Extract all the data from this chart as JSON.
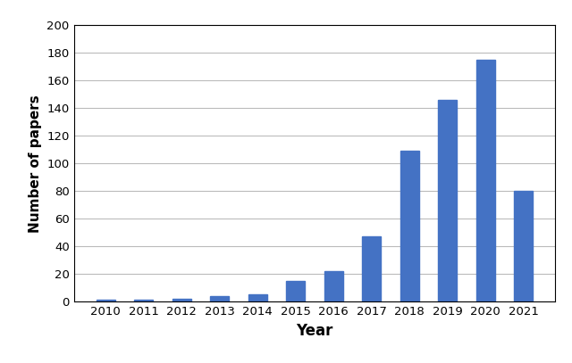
{
  "years": [
    2010,
    2011,
    2012,
    2013,
    2014,
    2015,
    2016,
    2017,
    2018,
    2019,
    2020,
    2021
  ],
  "values": [
    1,
    1,
    2,
    4,
    5,
    15,
    22,
    47,
    109,
    146,
    175,
    80
  ],
  "bar_color": "#4472C4",
  "xlabel": "Year",
  "ylabel": "Number of papers",
  "ylim": [
    0,
    200
  ],
  "yticks": [
    0,
    20,
    40,
    60,
    80,
    100,
    120,
    140,
    160,
    180,
    200
  ],
  "background_color": "#ffffff",
  "grid_color": "#bbbbbb",
  "xlabel_fontsize": 12,
  "ylabel_fontsize": 11,
  "tick_fontsize": 9.5
}
